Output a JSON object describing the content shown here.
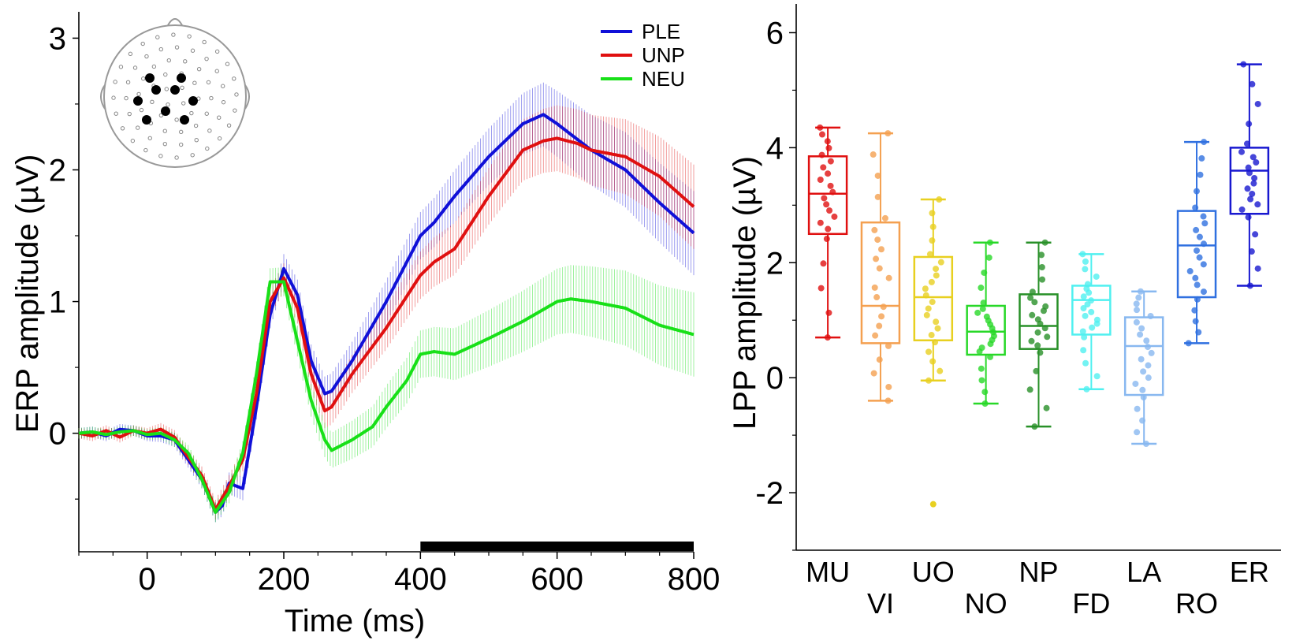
{
  "chart_data": [
    {
      "type": "line",
      "ylabel": "ERP amplitude (µV)",
      "xlabel": "Time (ms)",
      "xlim": [
        -100,
        800
      ],
      "ylim": [
        -0.9,
        3.2
      ],
      "xticks": [
        "0",
        "200",
        "400",
        "600",
        "800"
      ],
      "yticks": [
        "0",
        "1",
        "2",
        "3"
      ],
      "legend": {
        "position": "top-right",
        "entries": [
          "PLE",
          "UNP",
          "NEU"
        ]
      },
      "error_bars": true,
      "highlight_window_ms": [
        400,
        800
      ],
      "inset": "scalp electrode map",
      "series": [
        {
          "name": "PLE",
          "color": "#1010d8",
          "x": [
            -100,
            -80,
            -60,
            -40,
            -20,
            0,
            20,
            40,
            60,
            80,
            100,
            110,
            120,
            140,
            160,
            180,
            200,
            220,
            240,
            260,
            270,
            300,
            350,
            400,
            420,
            450,
            500,
            550,
            580,
            600,
            650,
            700,
            750,
            800
          ],
          "y": [
            0,
            0.01,
            -0.02,
            0.03,
            0.02,
            -0.02,
            -0.02,
            -0.05,
            -0.2,
            -0.35,
            -0.6,
            -0.55,
            -0.38,
            -0.42,
            0.2,
            0.9,
            1.25,
            1.05,
            0.55,
            0.3,
            0.32,
            0.55,
            1.0,
            1.5,
            1.6,
            1.8,
            2.1,
            2.35,
            2.42,
            2.35,
            2.15,
            2.0,
            1.75,
            1.52
          ]
        },
        {
          "name": "UNP",
          "color": "#e01010",
          "x": [
            -100,
            -80,
            -60,
            -40,
            -20,
            0,
            20,
            40,
            60,
            80,
            100,
            120,
            140,
            160,
            180,
            200,
            220,
            240,
            260,
            270,
            300,
            350,
            400,
            420,
            450,
            500,
            550,
            580,
            600,
            630,
            650,
            700,
            750,
            800
          ],
          "y": [
            0,
            -0.02,
            0.02,
            -0.03,
            0.02,
            0,
            0.03,
            -0.03,
            -0.18,
            -0.32,
            -0.58,
            -0.4,
            -0.2,
            0.3,
            1.0,
            1.18,
            0.95,
            0.45,
            0.17,
            0.2,
            0.45,
            0.8,
            1.2,
            1.3,
            1.4,
            1.8,
            2.15,
            2.22,
            2.24,
            2.2,
            2.15,
            2.1,
            1.95,
            1.72
          ]
        },
        {
          "name": "NEU",
          "color": "#18e018",
          "x": [
            -100,
            -80,
            -60,
            -40,
            -20,
            0,
            20,
            40,
            60,
            80,
            100,
            120,
            140,
            160,
            180,
            200,
            220,
            240,
            260,
            270,
            300,
            330,
            350,
            380,
            400,
            420,
            450,
            500,
            550,
            600,
            620,
            650,
            700,
            750,
            800
          ],
          "y": [
            0,
            0.01,
            -0.01,
            0.01,
            0.02,
            -0.01,
            0,
            -0.05,
            -0.15,
            -0.35,
            -0.6,
            -0.45,
            -0.15,
            0.45,
            1.15,
            1.15,
            0.7,
            0.25,
            -0.05,
            -0.13,
            -0.05,
            0.05,
            0.2,
            0.4,
            0.6,
            0.62,
            0.6,
            0.72,
            0.85,
            1.0,
            1.02,
            1.0,
            0.95,
            0.82,
            0.75
          ]
        }
      ]
    },
    {
      "type": "box",
      "ylabel": "LPP amplitude (µV)",
      "ylim": [
        -3,
        6.5
      ],
      "yticks": [
        "-2",
        "0",
        "2",
        "4",
        "6"
      ],
      "categories": [
        "MU",
        "VI",
        "UO",
        "NO",
        "NP",
        "FD",
        "LA",
        "RO",
        "ER"
      ],
      "boxes": [
        {
          "category": "MU",
          "color": "#e01010",
          "min": 0.7,
          "q1": 2.5,
          "median": 3.2,
          "q3": 3.85,
          "max": 4.35
        },
        {
          "category": "VI",
          "color": "#f4a050",
          "min": -0.4,
          "q1": 0.6,
          "median": 1.25,
          "q3": 2.7,
          "max": 4.25
        },
        {
          "category": "UO",
          "color": "#e8d020",
          "min": -0.05,
          "q1": 0.65,
          "median": 1.4,
          "q3": 2.1,
          "max": 3.1,
          "outliers": [
            -2.2
          ]
        },
        {
          "category": "NO",
          "color": "#28d828",
          "min": -0.45,
          "q1": 0.4,
          "median": 0.8,
          "q3": 1.25,
          "max": 2.35
        },
        {
          "category": "NP",
          "color": "#289028",
          "min": -0.85,
          "q1": 0.5,
          "median": 0.9,
          "q3": 1.45,
          "max": 2.35
        },
        {
          "category": "FD",
          "color": "#50f0f0",
          "min": -0.2,
          "q1": 0.75,
          "median": 1.35,
          "q3": 1.6,
          "max": 2.15
        },
        {
          "category": "LA",
          "color": "#88b8f0",
          "min": -1.15,
          "q1": -0.3,
          "median": 0.55,
          "q3": 1.05,
          "max": 1.5
        },
        {
          "category": "RO",
          "color": "#3070e0",
          "min": 0.6,
          "q1": 1.4,
          "median": 2.3,
          "q3": 2.9,
          "max": 4.1
        },
        {
          "category": "ER",
          "color": "#1818d0",
          "min": 1.6,
          "q1": 2.85,
          "median": 3.6,
          "q3": 4.0,
          "max": 5.45
        }
      ]
    }
  ]
}
